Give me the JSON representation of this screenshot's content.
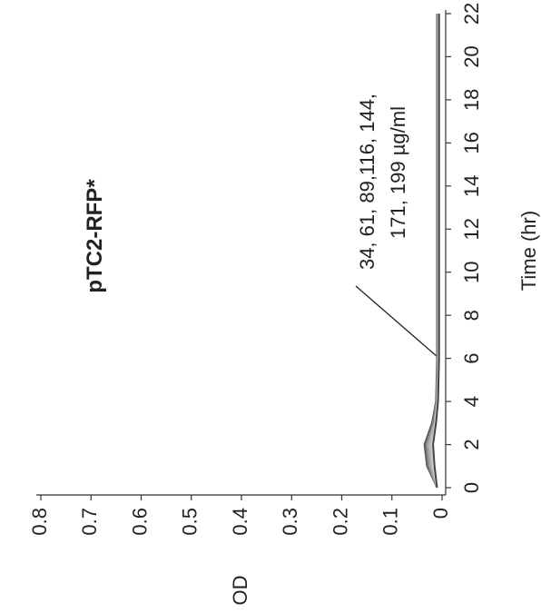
{
  "chart_data": {
    "type": "line",
    "title": "pTC2-RFP*",
    "x_label": "Time (hr)",
    "y_label": "OD",
    "annotation": [
      "34, 61, 89,116, 144,",
      "171, 199 µg/ml"
    ],
    "x": [
      0,
      1,
      2,
      3,
      4,
      6,
      8,
      10,
      12,
      14,
      16,
      18,
      20,
      22
    ],
    "series": [
      {
        "color": "#555555",
        "values": [
          0.01,
          0.03,
          0.035,
          0.02,
          0.012,
          0.01,
          0.01,
          0.01,
          0.01,
          0.01,
          0.01,
          0.01,
          0.01,
          0.01
        ]
      },
      {
        "color": "#777777",
        "values": [
          0.01,
          0.028,
          0.032,
          0.018,
          0.011,
          0.009,
          0.009,
          0.009,
          0.009,
          0.009,
          0.009,
          0.009,
          0.009,
          0.009
        ]
      },
      {
        "color": "#999999",
        "values": [
          0.01,
          0.025,
          0.03,
          0.016,
          0.01,
          0.008,
          0.008,
          0.008,
          0.008,
          0.008,
          0.008,
          0.008,
          0.008,
          0.008
        ]
      },
      {
        "color": "#aaaaaa",
        "values": [
          0.01,
          0.022,
          0.027,
          0.015,
          0.01,
          0.008,
          0.008,
          0.008,
          0.008,
          0.008,
          0.008,
          0.008,
          0.008,
          0.008
        ]
      },
      {
        "color": "#bbbbbb",
        "values": [
          0.01,
          0.02,
          0.024,
          0.014,
          0.009,
          0.007,
          0.007,
          0.007,
          0.007,
          0.007,
          0.007,
          0.007,
          0.007,
          0.007
        ]
      },
      {
        "color": "#cccccc",
        "values": [
          0.01,
          0.018,
          0.02,
          0.013,
          0.009,
          0.007,
          0.007,
          0.007,
          0.007,
          0.007,
          0.007,
          0.007,
          0.007,
          0.007
        ]
      },
      {
        "color": "#444444",
        "values": [
          0.01,
          0.015,
          0.018,
          0.012,
          0.008,
          0.006,
          0.006,
          0.006,
          0.006,
          0.006,
          0.006,
          0.006,
          0.006,
          0.006
        ]
      }
    ],
    "xlim": [
      0,
      22
    ],
    "xticks": [
      0,
      2,
      4,
      6,
      8,
      10,
      12,
      14,
      16,
      18,
      20,
      22
    ],
    "ylim": [
      0,
      0.8
    ],
    "yticks": [
      0,
      0.1,
      0.2,
      0.3,
      0.4,
      0.5,
      0.6,
      0.7,
      0.8
    ],
    "grid": false
  }
}
